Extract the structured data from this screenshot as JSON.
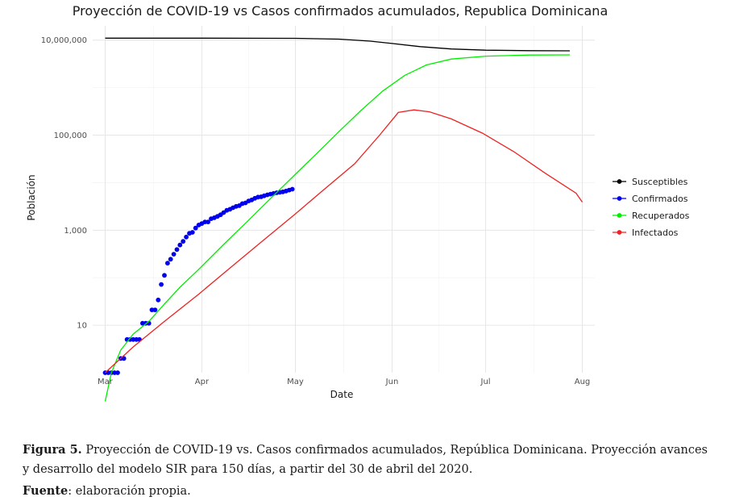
{
  "chart_data": {
    "type": "line",
    "title": "Proyección de COVID-19  vs Casos confirmados acumulados, Republica Dominicana",
    "xlabel": "Date",
    "ylabel": "Población",
    "y_scale": "log10",
    "ylim": [
      1,
      20000000
    ],
    "xlim": [
      "2020-02-26",
      "2020-08-05"
    ],
    "x_ticks": [
      {
        "date": "2020-03-01",
        "label": "Mar"
      },
      {
        "date": "2020-04-01",
        "label": "Apr"
      },
      {
        "date": "2020-05-01",
        "label": "May"
      },
      {
        "date": "2020-06-01",
        "label": "Jun"
      },
      {
        "date": "2020-07-01",
        "label": "Jul"
      },
      {
        "date": "2020-08-01",
        "label": "Aug"
      }
    ],
    "y_ticks": [
      {
        "value": 10,
        "label": "10"
      },
      {
        "value": 1000,
        "label": "1,000"
      },
      {
        "value": 100000,
        "label": "100,000"
      },
      {
        "value": 10000000,
        "label": "10,000,000"
      }
    ],
    "grid": true,
    "legend_position": "right",
    "series": [
      {
        "name": "Susceptibles",
        "color": "#000000",
        "style": "line",
        "points": [
          [
            "2020-03-01",
            11000000
          ],
          [
            "2020-04-01",
            10990000
          ],
          [
            "2020-05-01",
            10900000
          ],
          [
            "2020-05-15",
            10500000
          ],
          [
            "2020-05-25",
            9500000
          ],
          [
            "2020-06-01",
            8500000
          ],
          [
            "2020-06-10",
            7300000
          ],
          [
            "2020-06-20",
            6500000
          ],
          [
            "2020-07-01",
            6150000
          ],
          [
            "2020-07-15",
            6000000
          ],
          [
            "2020-07-28",
            5950000
          ]
        ]
      },
      {
        "name": "Confirmados",
        "color": "#0000ee",
        "style": "points",
        "points": [
          [
            "2020-03-01",
            1
          ],
          [
            "2020-03-02",
            1
          ],
          [
            "2020-03-03",
            1
          ],
          [
            "2020-03-04",
            1
          ],
          [
            "2020-03-05",
            1
          ],
          [
            "2020-03-06",
            2
          ],
          [
            "2020-03-07",
            2
          ],
          [
            "2020-03-08",
            5
          ],
          [
            "2020-03-09",
            5
          ],
          [
            "2020-03-10",
            5
          ],
          [
            "2020-03-11",
            5
          ],
          [
            "2020-03-12",
            5
          ],
          [
            "2020-03-13",
            11
          ],
          [
            "2020-03-14",
            11
          ],
          [
            "2020-03-15",
            11
          ],
          [
            "2020-03-16",
            21
          ],
          [
            "2020-03-17",
            21
          ],
          [
            "2020-03-18",
            34
          ],
          [
            "2020-03-19",
            72
          ],
          [
            "2020-03-20",
            112
          ],
          [
            "2020-03-21",
            202
          ],
          [
            "2020-03-22",
            245
          ],
          [
            "2020-03-23",
            312
          ],
          [
            "2020-03-24",
            392
          ],
          [
            "2020-03-25",
            488
          ],
          [
            "2020-03-26",
            581
          ],
          [
            "2020-03-27",
            719
          ],
          [
            "2020-03-28",
            859
          ],
          [
            "2020-03-29",
            901
          ],
          [
            "2020-03-30",
            1109
          ],
          [
            "2020-03-31",
            1284
          ],
          [
            "2020-04-01",
            1380
          ],
          [
            "2020-04-02",
            1488
          ],
          [
            "2020-04-03",
            1488
          ],
          [
            "2020-04-04",
            1745
          ],
          [
            "2020-04-05",
            1828
          ],
          [
            "2020-04-06",
            1956
          ],
          [
            "2020-04-07",
            2111
          ],
          [
            "2020-04-08",
            2349
          ],
          [
            "2020-04-09",
            2620
          ],
          [
            "2020-04-10",
            2759
          ],
          [
            "2020-04-11",
            2967
          ],
          [
            "2020-04-12",
            3167
          ],
          [
            "2020-04-13",
            3286
          ],
          [
            "2020-04-14",
            3614
          ],
          [
            "2020-04-15",
            3755
          ],
          [
            "2020-04-16",
            4126
          ],
          [
            "2020-04-17",
            4335
          ],
          [
            "2020-04-18",
            4680
          ],
          [
            "2020-04-19",
            4964
          ],
          [
            "2020-04-20",
            5044
          ],
          [
            "2020-04-21",
            5300
          ],
          [
            "2020-04-22",
            5543
          ],
          [
            "2020-04-23",
            5749
          ],
          [
            "2020-04-24",
            5926
          ],
          [
            "2020-04-25",
            6135
          ],
          [
            "2020-04-26",
            6293
          ],
          [
            "2020-04-27",
            6416
          ],
          [
            "2020-04-28",
            6652
          ],
          [
            "2020-04-29",
            6972
          ],
          [
            "2020-04-30",
            7288
          ]
        ]
      },
      {
        "name": "Recuperados",
        "color": "#00ee00",
        "style": "line",
        "points": [
          [
            "2020-03-01",
            0.25
          ],
          [
            "2020-03-03",
            1
          ],
          [
            "2020-03-06",
            3
          ],
          [
            "2020-03-10",
            6.5
          ],
          [
            "2020-03-15",
            12
          ],
          [
            "2020-03-20",
            28
          ],
          [
            "2020-03-25",
            63
          ],
          [
            "2020-03-31",
            150
          ],
          [
            "2020-04-08",
            500
          ],
          [
            "2020-04-15",
            1400
          ],
          [
            "2020-04-22",
            4000
          ],
          [
            "2020-05-01",
            15000
          ],
          [
            "2020-05-08",
            42000
          ],
          [
            "2020-05-15",
            120000
          ],
          [
            "2020-05-22",
            330000
          ],
          [
            "2020-05-29",
            850000
          ],
          [
            "2020-06-05",
            1800000
          ],
          [
            "2020-06-12",
            3000000
          ],
          [
            "2020-06-20",
            4000000
          ],
          [
            "2020-07-01",
            4600000
          ],
          [
            "2020-07-15",
            4850000
          ],
          [
            "2020-07-28",
            4900000
          ]
        ]
      },
      {
        "name": "Infectados",
        "color": "#ee2222",
        "style": "line",
        "points": [
          [
            "2020-03-01",
            1
          ],
          [
            "2020-03-10",
            3.5
          ],
          [
            "2020-03-20",
            12
          ],
          [
            "2020-03-31",
            45
          ],
          [
            "2020-04-10",
            160
          ],
          [
            "2020-04-20",
            560
          ],
          [
            "2020-05-01",
            2200
          ],
          [
            "2020-05-10",
            7000
          ],
          [
            "2020-05-20",
            25000
          ],
          [
            "2020-05-28",
            100000
          ],
          [
            "2020-06-03",
            300000
          ],
          [
            "2020-06-08",
            340000
          ],
          [
            "2020-06-13",
            310000
          ],
          [
            "2020-06-20",
            220000
          ],
          [
            "2020-06-30",
            110000
          ],
          [
            "2020-07-10",
            45000
          ],
          [
            "2020-07-20",
            16000
          ],
          [
            "2020-07-30",
            6000
          ],
          [
            "2020-08-01",
            3900
          ]
        ]
      }
    ]
  },
  "caption": {
    "figure_label": "Figura 5.",
    "figure_text": " Proyección de COVID-19 vs. Casos confirmados acumulados, República Dominicana. Proyección avances y desarrollo del modelo SIR para 150 días, a partir del 30 de abril del 2020.",
    "source_label": "Fuente",
    "source_text": ": elaboración propia."
  }
}
